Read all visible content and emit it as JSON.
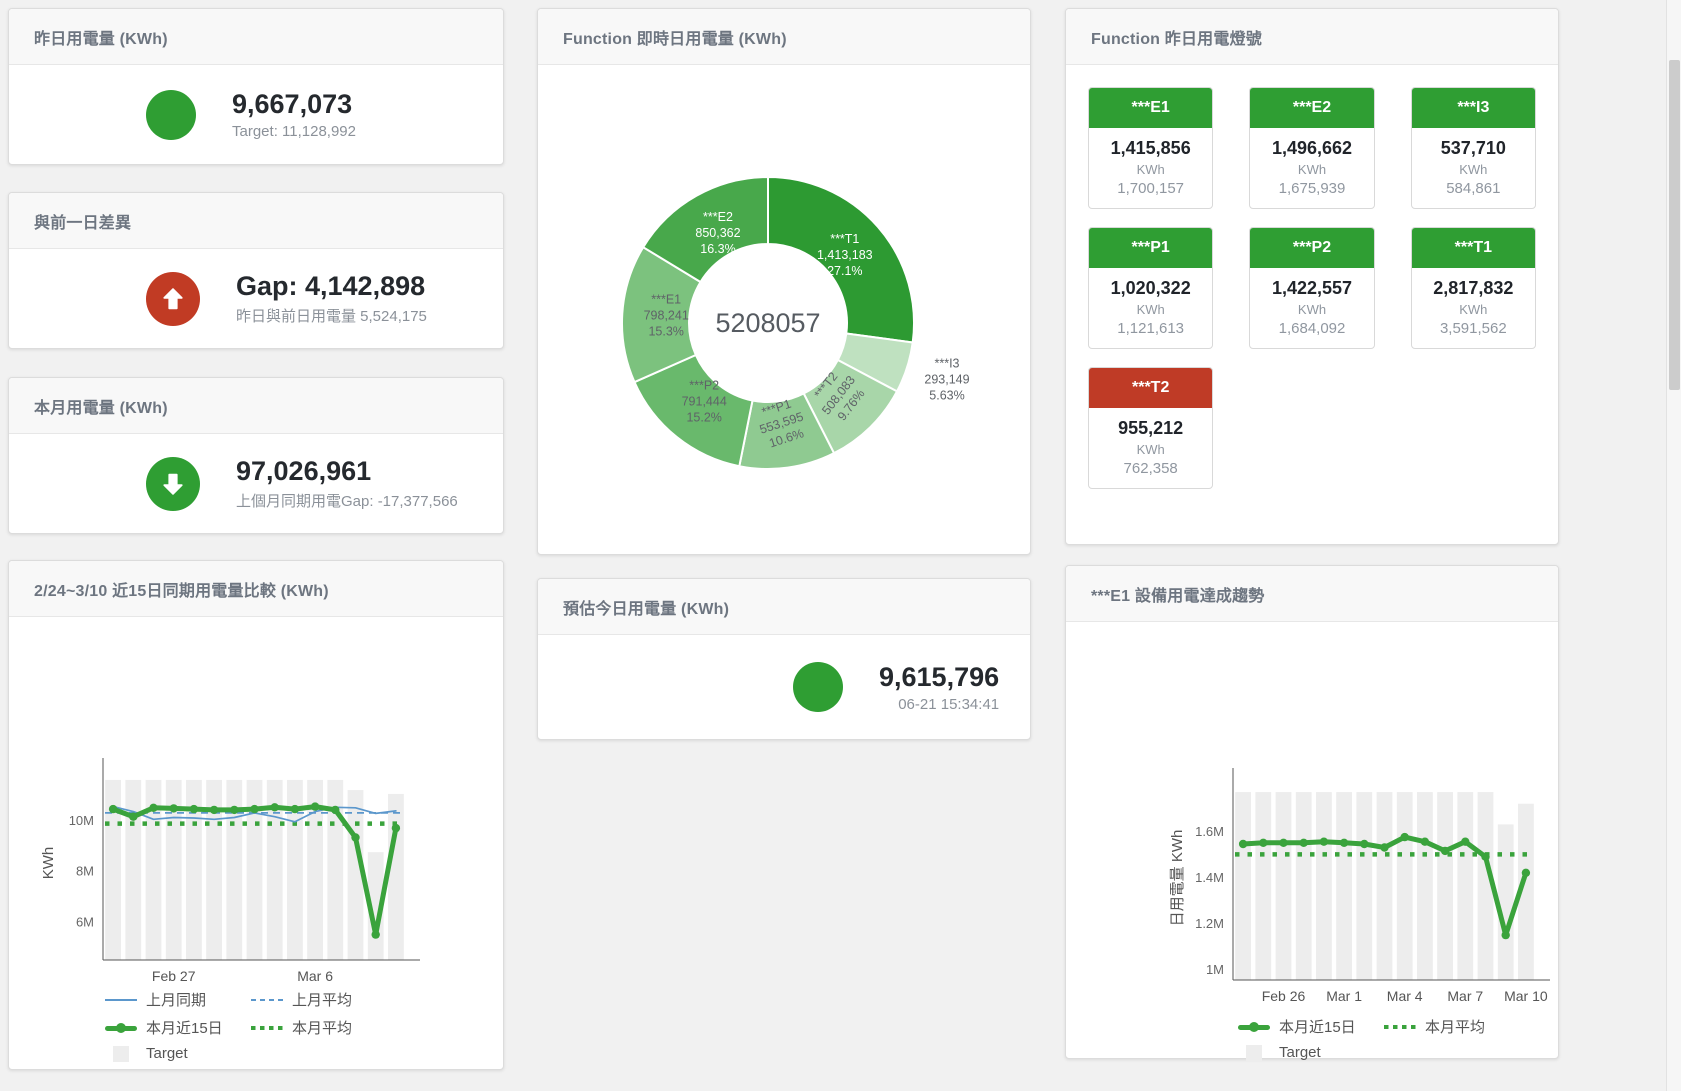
{
  "colors": {
    "green": "#2f9e33",
    "red": "#c13b24",
    "line_green": "#3aa33c",
    "line_blue": "#5b97cc",
    "bar_gray": "#ededed"
  },
  "cards": {
    "yesterday": {
      "title": "昨日用電量 (KWh)",
      "value": "9,667,073",
      "subtext": "Target: 11,128,992",
      "indicator": "green-circle"
    },
    "gap": {
      "title": "與前一日差異",
      "value": "Gap: 4,142,898",
      "subtext": "昨日與前日用電量 5,524,175",
      "indicator": "red-up-arrow"
    },
    "month": {
      "title": "本月用電量 (KWh)",
      "value": "97,026,961",
      "subtext": "上個月同期用電Gap: -17,377,566",
      "indicator": "green-down-arrow"
    },
    "estimate": {
      "title": "預估今日用電量 (KWh)",
      "value": "9,615,796",
      "subtext": "06-21 15:34:41",
      "indicator": "green-circle"
    },
    "donut": {
      "title": "Function 即時日用電量 (KWh)"
    },
    "compare": {
      "title": "2/24~3/10 近15日同期用電量比較 (KWh)"
    },
    "lamps": {
      "title": "Function 昨日用電燈號",
      "status_colors": {
        "green": "#2f9e33",
        "red": "#bf3b26"
      },
      "tiles": [
        {
          "name": "***E1",
          "value": "1,415,856",
          "unit": "KWh",
          "target": "1,700,157",
          "status": "green"
        },
        {
          "name": "***E2",
          "value": "1,496,662",
          "unit": "KWh",
          "target": "1,675,939",
          "status": "green"
        },
        {
          "name": "***I3",
          "value": "537,710",
          "unit": "KWh",
          "target": "584,861",
          "status": "green"
        },
        {
          "name": "***P1",
          "value": "1,020,322",
          "unit": "KWh",
          "target": "1,121,613",
          "status": "green"
        },
        {
          "name": "***P2",
          "value": "1,422,557",
          "unit": "KWh",
          "target": "1,684,092",
          "status": "green"
        },
        {
          "name": "***T1",
          "value": "2,817,832",
          "unit": "KWh",
          "target": "3,591,562",
          "status": "green"
        },
        {
          "name": "***T2",
          "value": "955,212",
          "unit": "KWh",
          "target": "762,358",
          "status": "red"
        }
      ]
    },
    "e1trend": {
      "title": "***E1 設備用電達成趨勢"
    }
  },
  "chart_data": [
    {
      "type": "pie",
      "title": "Function 即時日用電量 (KWh)",
      "center_total": "5208057",
      "slices": [
        {
          "name": "***T1",
          "value": 1413183,
          "value_label": "1,413,183",
          "pct": 27.1,
          "pct_label": "27.1%",
          "color": "#2d9a32",
          "label_color": "#ffffff",
          "rotate": 0,
          "outside": false
        },
        {
          "name": "***I3",
          "value": 293149,
          "value_label": "293,149",
          "pct": 5.63,
          "pct_label": "5.63%",
          "color": "#bfe1c0",
          "label_color": "#5f6368",
          "rotate": 0,
          "outside": true
        },
        {
          "name": "***T2",
          "value": 508083,
          "value_label": "508,083",
          "pct": 9.76,
          "pct_label": "9.76%",
          "color": "#a8d6a9",
          "label_color": "#5f6368",
          "rotate": -52,
          "outside": false
        },
        {
          "name": "***P1",
          "value": 553595,
          "value_label": "553,595",
          "pct": 10.6,
          "pct_label": "10.6%",
          "color": "#8fca91",
          "label_color": "#5f6368",
          "rotate": -18,
          "outside": false
        },
        {
          "name": "***P2",
          "value": 791444,
          "value_label": "791,444",
          "pct": 15.2,
          "pct_label": "15.2%",
          "color": "#69b96c",
          "label_color": "#5f6368",
          "rotate": 0,
          "outside": false
        },
        {
          "name": "***E1",
          "value": 798241,
          "value_label": "798,241",
          "pct": 15.3,
          "pct_label": "15.3%",
          "color": "#7cc27e",
          "label_color": "#5f6368",
          "rotate": 0,
          "outside": false
        },
        {
          "name": "***E2",
          "value": 850362,
          "value_label": "850,362",
          "pct": 16.3,
          "pct_label": "16.3%",
          "color": "#48a84b",
          "label_color": "#ffffff",
          "rotate": 0,
          "outside": false
        }
      ]
    },
    {
      "type": "line",
      "title": "2/24~3/10 近15日同期用電量比較 (KWh)",
      "ylabel": "KWh",
      "ylim": [
        4500000,
        12150000
      ],
      "yticks": [
        {
          "v": 6000000,
          "label": "6M"
        },
        {
          "v": 8000000,
          "label": "8M"
        },
        {
          "v": 10000000,
          "label": "10M"
        }
      ],
      "n": 15,
      "xticks": [
        {
          "i": 3,
          "label": "Feb 27"
        },
        {
          "i": 10,
          "label": "Mar 6"
        }
      ],
      "bar_color": "#ededed",
      "target_bars": [
        11600000,
        11600000,
        11600000,
        11600000,
        11600000,
        11600000,
        11600000,
        11600000,
        11600000,
        11600000,
        11600000,
        11600000,
        11200000,
        8750000,
        11050000
      ],
      "series": [
        {
          "name": "上月平均",
          "style": "dashed",
          "color": "#5b97cc",
          "values": [
            10300000
          ]
        },
        {
          "name": "本月平均",
          "style": "dotted",
          "color": "#3aa33c",
          "values": [
            9880000
          ]
        },
        {
          "name": "上月同期",
          "style": "thin",
          "color": "#5b97cc",
          "values": [
            10550000,
            10350000,
            10050000,
            10120000,
            10100000,
            10050000,
            10120000,
            10300000,
            10150000,
            9950000,
            10350000,
            10520000,
            10500000,
            10280000,
            10380000
          ]
        },
        {
          "name": "本月近15日",
          "style": "thick",
          "color": "#3aa33c",
          "values": [
            10450000,
            10150000,
            10500000,
            10480000,
            10450000,
            10420000,
            10420000,
            10450000,
            10520000,
            10450000,
            10550000,
            10420000,
            9330000,
            5500000,
            9700000
          ]
        }
      ],
      "legend": [
        {
          "label": "上月同期",
          "swatch": "line",
          "color": "#5b97cc"
        },
        {
          "label": "上月平均",
          "swatch": "dashed",
          "color": "#5b97cc"
        },
        {
          "label": "本月近15日",
          "swatch": "thick",
          "color": "#3aa33c"
        },
        {
          "label": "本月平均",
          "swatch": "dotted",
          "color": "#3aa33c"
        },
        {
          "label": "Target",
          "swatch": "square",
          "color": "#ededed"
        }
      ]
    },
    {
      "type": "line",
      "title": "***E1 設備用電達成趨勢",
      "ylabel": "日用電量 KWh",
      "ylim": [
        955000,
        1840000
      ],
      "yticks": [
        {
          "v": 1000000,
          "label": "1M"
        },
        {
          "v": 1200000,
          "label": "1.2M"
        },
        {
          "v": 1400000,
          "label": "1.4M"
        },
        {
          "v": 1600000,
          "label": "1.6M"
        }
      ],
      "n": 15,
      "xticks": [
        {
          "i": 2,
          "label": "Feb 26"
        },
        {
          "i": 5,
          "label": "Mar 1"
        },
        {
          "i": 8,
          "label": "Mar 4"
        },
        {
          "i": 11,
          "label": "Mar 7"
        },
        {
          "i": 14,
          "label": "Mar 10"
        }
      ],
      "bar_color": "#ededed",
      "target_bars": [
        1770000,
        1770000,
        1770000,
        1770000,
        1770000,
        1770000,
        1770000,
        1770000,
        1770000,
        1770000,
        1770000,
        1770000,
        1770000,
        1630000,
        1720000
      ],
      "series": [
        {
          "name": "本月平均",
          "style": "dotted",
          "color": "#3aa33c",
          "values": [
            1500000
          ]
        },
        {
          "name": "本月近15日",
          "style": "thick",
          "color": "#3aa33c",
          "values": [
            1545000,
            1550000,
            1550000,
            1550000,
            1555000,
            1550000,
            1545000,
            1530000,
            1575000,
            1555000,
            1515000,
            1555000,
            1490000,
            1150000,
            1420000
          ]
        }
      ],
      "legend": [
        {
          "label": "本月近15日",
          "swatch": "thick",
          "color": "#3aa33c"
        },
        {
          "label": "本月平均",
          "swatch": "dotted",
          "color": "#3aa33c"
        },
        {
          "label": "Target",
          "swatch": "square",
          "color": "#ededed"
        }
      ]
    }
  ]
}
